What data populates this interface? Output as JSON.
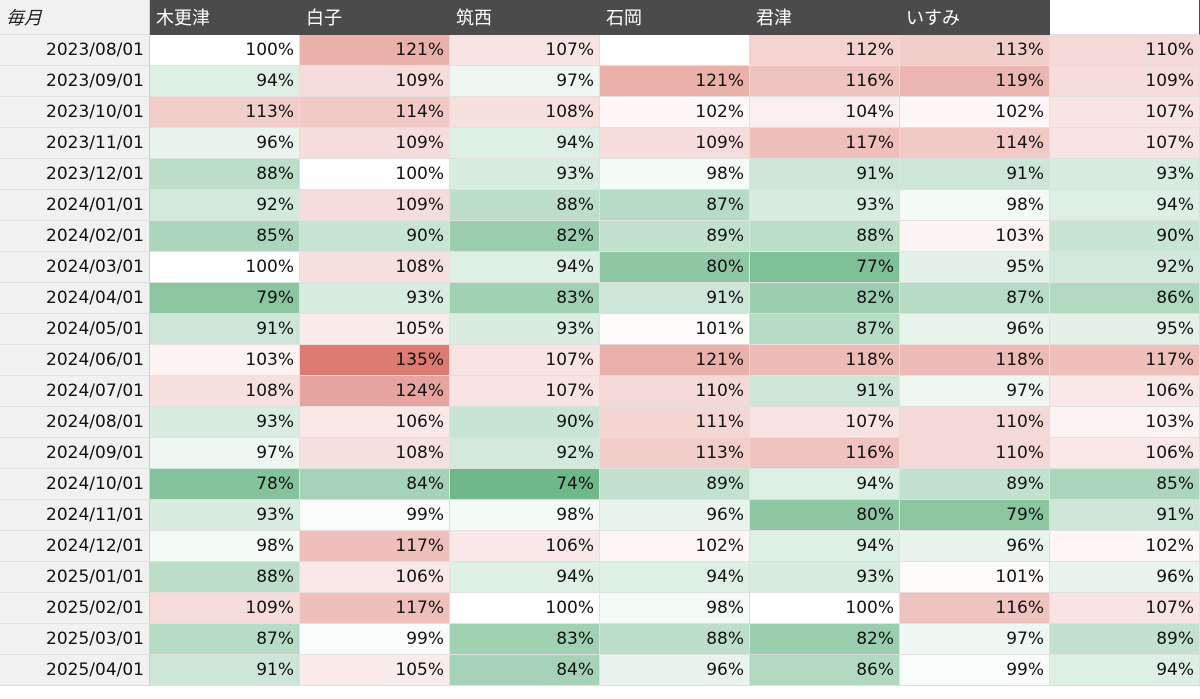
{
  "sheet": {
    "corner_label": "毎月",
    "columns": [
      "木更津",
      "白子",
      "筑西",
      "石岡",
      "君津",
      "いすみ",
      ""
    ],
    "rows": [
      {
        "date": "2023/08/01",
        "cells": [
          "100%",
          "121%",
          "107%",
          "",
          "112%",
          "113%",
          "110%"
        ]
      },
      {
        "date": "2023/09/01",
        "cells": [
          "94%",
          "109%",
          "97%",
          "121%",
          "116%",
          "119%",
          "109%"
        ]
      },
      {
        "date": "2023/10/01",
        "cells": [
          "113%",
          "114%",
          "108%",
          "102%",
          "104%",
          "102%",
          "107%"
        ]
      },
      {
        "date": "2023/11/01",
        "cells": [
          "96%",
          "109%",
          "94%",
          "109%",
          "117%",
          "114%",
          "107%"
        ]
      },
      {
        "date": "2023/12/01",
        "cells": [
          "88%",
          "100%",
          "93%",
          "98%",
          "91%",
          "91%",
          "93%"
        ]
      },
      {
        "date": "2024/01/01",
        "cells": [
          "92%",
          "109%",
          "88%",
          "87%",
          "93%",
          "98%",
          "94%"
        ]
      },
      {
        "date": "2024/02/01",
        "cells": [
          "85%",
          "90%",
          "82%",
          "89%",
          "88%",
          "103%",
          "90%"
        ]
      },
      {
        "date": "2024/03/01",
        "cells": [
          "100%",
          "108%",
          "94%",
          "80%",
          "77%",
          "95%",
          "92%"
        ]
      },
      {
        "date": "2024/04/01",
        "cells": [
          "79%",
          "93%",
          "83%",
          "91%",
          "82%",
          "87%",
          "86%"
        ]
      },
      {
        "date": "2024/05/01",
        "cells": [
          "91%",
          "105%",
          "93%",
          "101%",
          "87%",
          "96%",
          "95%"
        ]
      },
      {
        "date": "2024/06/01",
        "cells": [
          "103%",
          "135%",
          "107%",
          "121%",
          "118%",
          "118%",
          "117%"
        ]
      },
      {
        "date": "2024/07/01",
        "cells": [
          "108%",
          "124%",
          "107%",
          "110%",
          "91%",
          "97%",
          "106%"
        ]
      },
      {
        "date": "2024/08/01",
        "cells": [
          "93%",
          "106%",
          "90%",
          "111%",
          "107%",
          "110%",
          "103%"
        ]
      },
      {
        "date": "2024/09/01",
        "cells": [
          "97%",
          "108%",
          "92%",
          "113%",
          "116%",
          "110%",
          "106%"
        ]
      },
      {
        "date": "2024/10/01",
        "cells": [
          "78%",
          "84%",
          "74%",
          "89%",
          "94%",
          "89%",
          "85%"
        ]
      },
      {
        "date": "2024/11/01",
        "cells": [
          "93%",
          "99%",
          "98%",
          "96%",
          "80%",
          "79%",
          "91%"
        ]
      },
      {
        "date": "2024/12/01",
        "cells": [
          "98%",
          "117%",
          "106%",
          "102%",
          "94%",
          "96%",
          "102%"
        ]
      },
      {
        "date": "2025/01/01",
        "cells": [
          "88%",
          "106%",
          "94%",
          "94%",
          "93%",
          "101%",
          "96%"
        ]
      },
      {
        "date": "2025/02/01",
        "cells": [
          "109%",
          "117%",
          "100%",
          "98%",
          "100%",
          "116%",
          "107%"
        ]
      },
      {
        "date": "2025/03/01",
        "cells": [
          "87%",
          "99%",
          "83%",
          "88%",
          "82%",
          "97%",
          "89%"
        ]
      },
      {
        "date": "2025/04/01",
        "cells": [
          "91%",
          "105%",
          "84%",
          "96%",
          "86%",
          "99%",
          "94%"
        ]
      }
    ]
  },
  "colors": {
    "header_bg": "#4b4b4b",
    "date_bg": "#f1f1f1",
    "high": "#dc7b72",
    "low": "#6fb88a"
  }
}
